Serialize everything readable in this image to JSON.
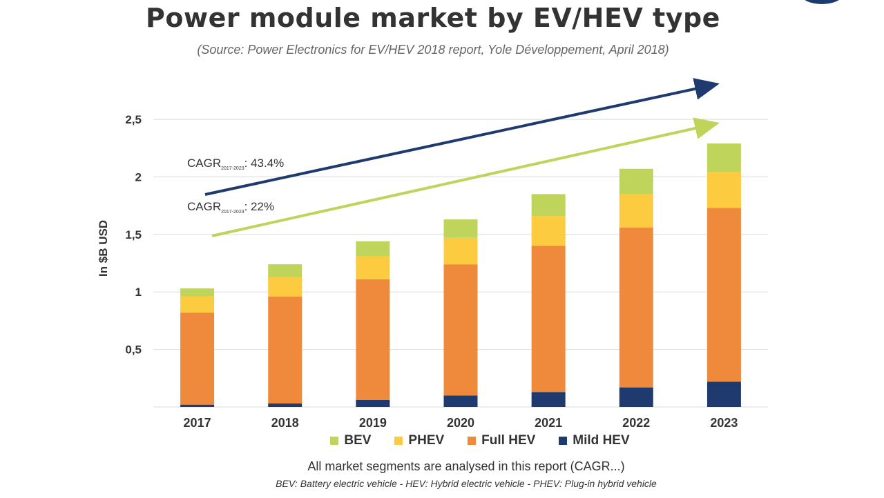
{
  "header": {
    "title": "Power module market by EV/HEV type",
    "source": "(Source: Power Electronics for EV/HEV 2018 report, Yole Développement, April 2018)"
  },
  "chart_data": {
    "type": "bar",
    "stacked": true,
    "categories": [
      "2017",
      "2018",
      "2019",
      "2020",
      "2021",
      "2022",
      "2023"
    ],
    "series": [
      {
        "name": "Mild HEV",
        "color": "#1f3a6e",
        "values": [
          0.02,
          0.03,
          0.06,
          0.1,
          0.13,
          0.17,
          0.22
        ]
      },
      {
        "name": "Full HEV",
        "color": "#ef8a3c",
        "values": [
          0.8,
          0.93,
          1.05,
          1.14,
          1.27,
          1.39,
          1.51
        ]
      },
      {
        "name": "PHEV",
        "color": "#fdcb40",
        "values": [
          0.14,
          0.17,
          0.2,
          0.23,
          0.26,
          0.29,
          0.31
        ]
      },
      {
        "name": "BEV",
        "color": "#bed45b",
        "values": [
          0.07,
          0.11,
          0.13,
          0.16,
          0.19,
          0.22,
          0.25
        ]
      }
    ],
    "y_ticks": [
      "",
      "0,5",
      "1",
      "1,5",
      "2",
      "2,5"
    ],
    "ylim": [
      0,
      2.5
    ],
    "ylabel": "In $B USD",
    "xlabel": "",
    "grid": true,
    "legend_position": "bottom",
    "annotations": {
      "cagr_dark": {
        "label": "CAGR",
        "sub": "2017-2023",
        "value": ": 43.4%",
        "color": "#1f3a6e"
      },
      "cagr_light": {
        "label": "CAGR",
        "sub": "2017-2023",
        "value": ": 22%",
        "color": "#bed45b"
      }
    }
  },
  "legend": [
    {
      "label": "BEV",
      "color": "#bed45b"
    },
    {
      "label": "PHEV",
      "color": "#fdcb40"
    },
    {
      "label": "Full HEV",
      "color": "#ef8a3c"
    },
    {
      "label": "Mild HEV",
      "color": "#1f3a6e"
    }
  ],
  "footer": {
    "note": "All market segments are analysed in this report (CAGR...)",
    "definitions": "BEV: Battery electric vehicle - HEV: Hybrid electric vehicle - PHEV: Plug-in hybrid vehicle"
  }
}
